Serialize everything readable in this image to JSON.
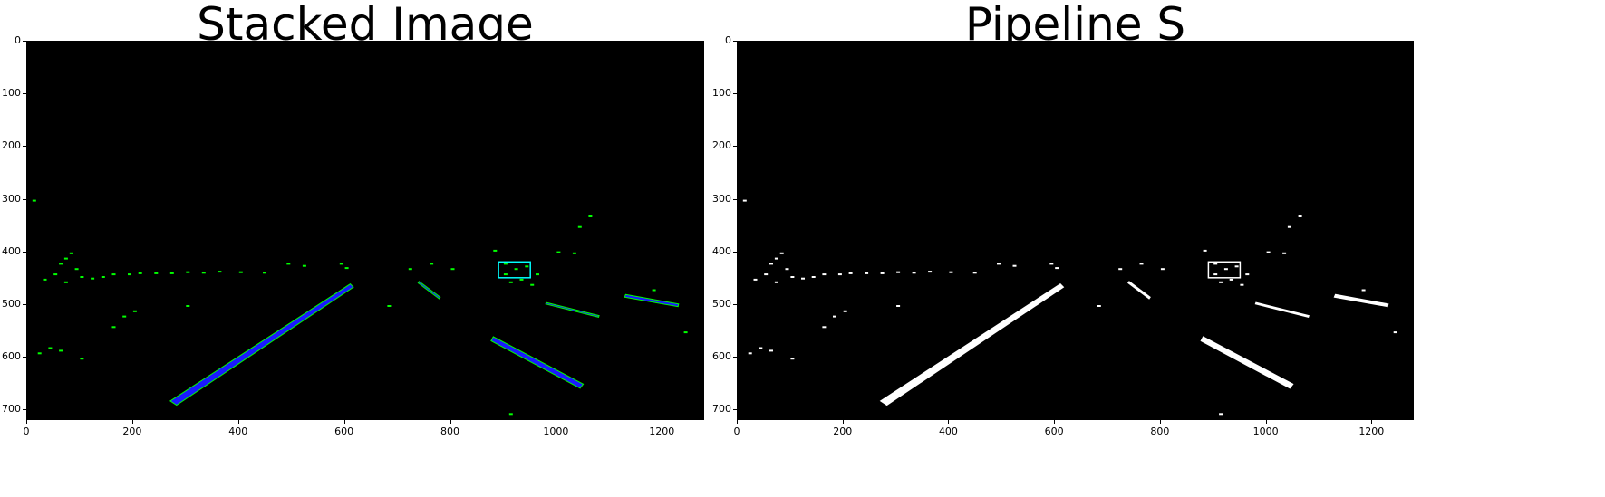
{
  "figure": {
    "panels": [
      {
        "id": "stacked",
        "title": "Stacked Image",
        "x_ticks": [
          "0",
          "200",
          "400",
          "600",
          "800",
          "1000",
          "1200"
        ],
        "y_ticks": [
          "0",
          "100",
          "200",
          "300",
          "400",
          "500",
          "600",
          "700"
        ],
        "colors": {
          "background": "#000000",
          "lane_core": "#1a1aff",
          "edge": "#00ff00",
          "highlight": "#00ffff"
        }
      },
      {
        "id": "pipeline",
        "title": "Pipeline S",
        "x_ticks": [
          "0",
          "200",
          "400",
          "600",
          "800",
          "1000",
          "1200"
        ],
        "y_ticks": [
          "0",
          "100",
          "200",
          "300",
          "400",
          "500",
          "600",
          "700"
        ],
        "colors": {
          "background": "#000000",
          "lane_core": "#ffffff",
          "edge": "#ffffff",
          "highlight": "#ffffff"
        }
      }
    ]
  }
}
